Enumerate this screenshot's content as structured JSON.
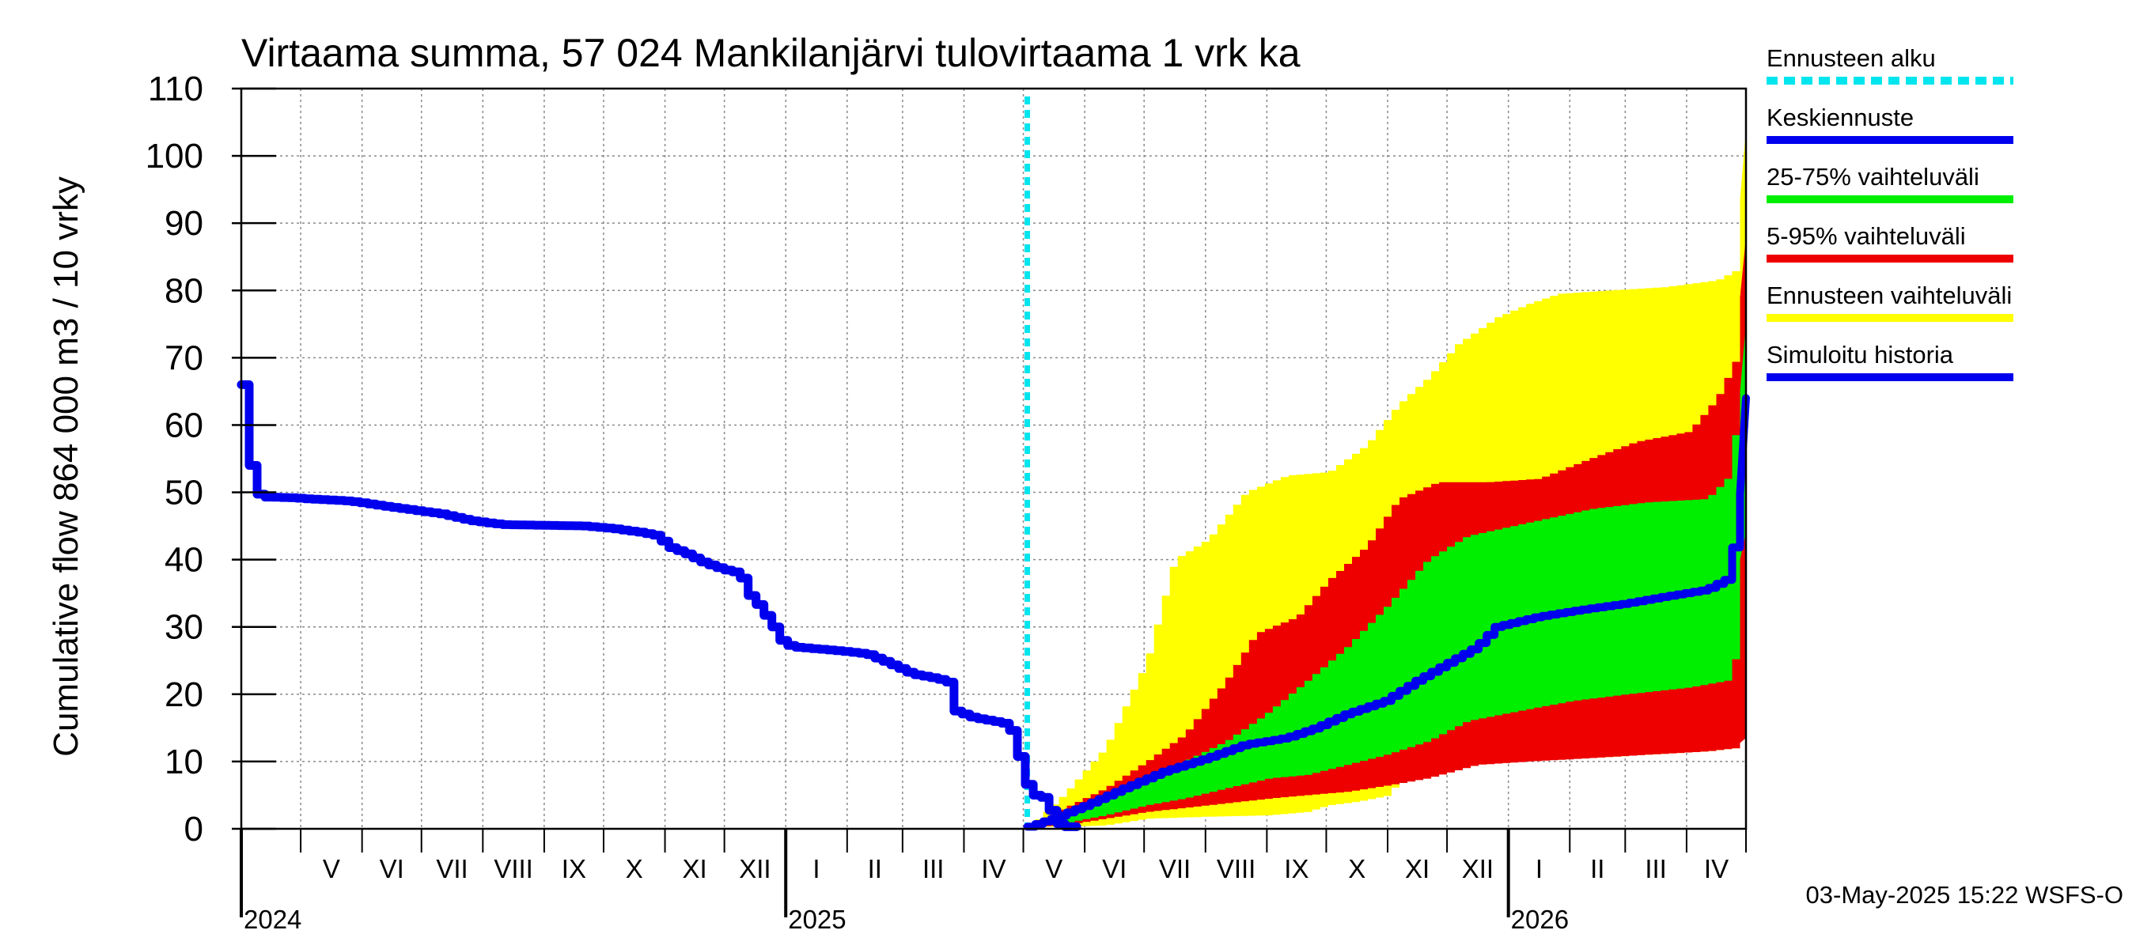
{
  "chart_data": {
    "type": "area",
    "title": "Virtaama summa, 57 024 Mankilanjärvi tulovirtaama 1 vrk ka",
    "ylabel": "Cumulative flow    864 000 m3 / 10 vrky",
    "ylim": [
      0,
      110
    ],
    "yticks": [
      0,
      10,
      20,
      30,
      40,
      50,
      60,
      70,
      80,
      90,
      100,
      110
    ],
    "xlim": [
      "2024-04-01",
      "2026-05-01"
    ],
    "grid": true,
    "month_labels": [
      {
        "label": "V",
        "month": "2024-05"
      },
      {
        "label": "VI",
        "month": "2024-06"
      },
      {
        "label": "VII",
        "month": "2024-07"
      },
      {
        "label": "VIII",
        "month": "2024-08"
      },
      {
        "label": "IX",
        "month": "2024-09"
      },
      {
        "label": "X",
        "month": "2024-10"
      },
      {
        "label": "XI",
        "month": "2024-11"
      },
      {
        "label": "XII",
        "month": "2024-12"
      },
      {
        "label": "I",
        "month": "2025-01"
      },
      {
        "label": "II",
        "month": "2025-02"
      },
      {
        "label": "III",
        "month": "2025-03"
      },
      {
        "label": "IV",
        "month": "2025-04"
      },
      {
        "label": "V",
        "month": "2025-05"
      },
      {
        "label": "VI",
        "month": "2025-06"
      },
      {
        "label": "VII",
        "month": "2025-07"
      },
      {
        "label": "VIII",
        "month": "2025-08"
      },
      {
        "label": "IX",
        "month": "2025-09"
      },
      {
        "label": "X",
        "month": "2025-10"
      },
      {
        "label": "XI",
        "month": "2025-11"
      },
      {
        "label": "XII",
        "month": "2025-12"
      },
      {
        "label": "I",
        "month": "2026-01"
      },
      {
        "label": "II",
        "month": "2026-02"
      },
      {
        "label": "III",
        "month": "2026-03"
      },
      {
        "label": "IV",
        "month": "2026-04"
      }
    ],
    "year_labels": [
      {
        "label": "2024",
        "date": "2024-04-01"
      },
      {
        "label": "2025",
        "date": "2025-01-01"
      },
      {
        "label": "2026",
        "date": "2026-01-01"
      }
    ],
    "forecast_start": "2025-05-03",
    "legend": [
      {
        "label": "Ennusteen alku",
        "color": "#00e5ee",
        "style": "dashed"
      },
      {
        "label": "Keskiennuste",
        "color": "#0000ee",
        "style": "solid"
      },
      {
        "label": "25-75% vaihteluväli",
        "color": "#00ee00",
        "style": "solid"
      },
      {
        "label": "5-95% vaihteluväli",
        "color": "#ee0000",
        "style": "solid"
      },
      {
        "label": "Ennusteen vaihteluväli",
        "color": "#ffff00",
        "style": "solid"
      },
      {
        "label": "Simuloitu historia",
        "color": "#0000ee",
        "style": "solid"
      }
    ],
    "colors": {
      "history": "#0000ee",
      "median": "#0000ee",
      "band_25_75": "#00ee00",
      "band_5_95": "#ee0000",
      "band_full": "#ffff00",
      "forecast_start": "#00e5ee"
    },
    "history": [
      [
        "2024-04-01",
        66
      ],
      [
        "2024-04-04",
        56
      ],
      [
        "2024-04-07",
        50
      ],
      [
        "2024-04-12",
        49.3
      ],
      [
        "2024-04-25",
        49.2
      ],
      [
        "2024-05-05",
        49
      ],
      [
        "2024-05-25",
        48.7
      ],
      [
        "2024-06-10",
        48
      ],
      [
        "2024-06-25",
        47.4
      ],
      [
        "2024-07-10",
        46.8
      ],
      [
        "2024-07-25",
        45.8
      ],
      [
        "2024-08-10",
        45.2
      ],
      [
        "2024-08-31",
        45.1
      ],
      [
        "2024-09-20",
        45
      ],
      [
        "2024-10-05",
        44.6
      ],
      [
        "2024-10-20",
        44
      ],
      [
        "2024-10-28",
        43.5
      ],
      [
        "2024-11-01",
        42
      ],
      [
        "2024-11-10",
        41
      ],
      [
        "2024-11-20",
        39.5
      ],
      [
        "2024-11-30",
        38.5
      ],
      [
        "2024-12-08",
        38
      ],
      [
        "2024-12-12",
        35
      ],
      [
        "2024-12-18",
        33
      ],
      [
        "2024-12-25",
        30
      ],
      [
        "2024-12-30",
        27.5
      ],
      [
        "2025-01-05",
        27
      ],
      [
        "2025-01-25",
        26.5
      ],
      [
        "2025-02-10",
        26
      ],
      [
        "2025-02-22",
        24.5
      ],
      [
        "2025-03-05",
        23
      ],
      [
        "2025-03-18",
        22.3
      ],
      [
        "2025-03-23",
        21.8
      ],
      [
        "2025-03-27",
        17.5
      ],
      [
        "2025-04-05",
        16.5
      ],
      [
        "2025-04-15",
        16
      ],
      [
        "2025-04-23",
        15.5
      ],
      [
        "2025-04-27",
        12
      ],
      [
        "2025-05-01",
        7
      ],
      [
        "2025-05-06",
        5
      ],
      [
        "2025-05-12",
        4.5
      ],
      [
        "2025-05-16",
        1
      ],
      [
        "2025-05-22",
        0.3
      ],
      [
        "2025-05-28",
        0.3
      ]
    ],
    "median": [
      [
        "2025-05-03",
        0.3
      ],
      [
        "2025-05-15",
        1.5
      ],
      [
        "2025-06-01",
        3.5
      ],
      [
        "2025-06-20",
        6
      ],
      [
        "2025-07-10",
        8.5
      ],
      [
        "2025-08-01",
        10.5
      ],
      [
        "2025-08-20",
        12.5
      ],
      [
        "2025-09-10",
        13.5
      ],
      [
        "2025-09-25",
        15
      ],
      [
        "2025-10-10",
        17
      ],
      [
        "2025-10-30",
        19
      ],
      [
        "2025-11-15",
        22
      ],
      [
        "2025-11-30",
        24.5
      ],
      [
        "2025-12-15",
        27
      ],
      [
        "2025-12-25",
        30
      ],
      [
        "2026-01-15",
        31.5
      ],
      [
        "2026-02-05",
        32.5
      ],
      [
        "2026-03-01",
        33.5
      ],
      [
        "2026-03-20",
        34.5
      ],
      [
        "2026-04-10",
        35.5
      ],
      [
        "2026-04-20",
        37
      ],
      [
        "2026-04-25",
        43
      ],
      [
        "2026-04-29",
        52
      ],
      [
        "2026-05-01",
        64
      ]
    ],
    "band_full_upper": [
      [
        "2025-05-03",
        0.3
      ],
      [
        "2025-05-20",
        5
      ],
      [
        "2025-06-10",
        12
      ],
      [
        "2025-07-01",
        25
      ],
      [
        "2025-07-15",
        40
      ],
      [
        "2025-08-01",
        43
      ],
      [
        "2025-08-20",
        50
      ],
      [
        "2025-09-10",
        52.5
      ],
      [
        "2025-10-01",
        53
      ],
      [
        "2025-10-20",
        57
      ],
      [
        "2025-11-05",
        63
      ],
      [
        "2025-11-20",
        67
      ],
      [
        "2025-12-05",
        72
      ],
      [
        "2025-12-25",
        76
      ],
      [
        "2026-01-10",
        78
      ],
      [
        "2026-01-25",
        79.5
      ],
      [
        "2026-02-20",
        80
      ],
      [
        "2026-03-20",
        80.5
      ],
      [
        "2026-04-15",
        81.5
      ],
      [
        "2026-04-25",
        83
      ],
      [
        "2026-05-01",
        104
      ]
    ],
    "band_5_95_upper": [
      [
        "2025-05-03",
        0.3
      ],
      [
        "2025-05-20",
        3
      ],
      [
        "2025-06-10",
        6
      ],
      [
        "2025-07-01",
        10
      ],
      [
        "2025-07-20",
        14
      ],
      [
        "2025-08-10",
        22
      ],
      [
        "2025-08-25",
        29
      ],
      [
        "2025-09-15",
        31.5
      ],
      [
        "2025-10-01",
        37
      ],
      [
        "2025-10-20",
        42
      ],
      [
        "2025-11-05",
        49
      ],
      [
        "2025-11-25",
        51.5
      ],
      [
        "2025-12-20",
        51.5
      ],
      [
        "2026-01-15",
        52
      ],
      [
        "2026-02-10",
        55
      ],
      [
        "2026-03-05",
        57.5
      ],
      [
        "2026-04-01",
        59
      ],
      [
        "2026-04-15",
        64
      ],
      [
        "2026-04-25",
        70
      ],
      [
        "2026-05-01",
        88
      ]
    ],
    "band_25_75_upper": [
      [
        "2025-05-03",
        0.3
      ],
      [
        "2025-05-20",
        2
      ],
      [
        "2025-06-10",
        4.5
      ],
      [
        "2025-07-01",
        7.5
      ],
      [
        "2025-07-20",
        10
      ],
      [
        "2025-08-10",
        13
      ],
      [
        "2025-08-30",
        17
      ],
      [
        "2025-09-20",
        22
      ],
      [
        "2025-10-10",
        27
      ],
      [
        "2025-10-30",
        33
      ],
      [
        "2025-11-20",
        40
      ],
      [
        "2025-12-10",
        43.5
      ],
      [
        "2026-01-10",
        45.5
      ],
      [
        "2026-02-10",
        47.5
      ],
      [
        "2026-03-10",
        48.5
      ],
      [
        "2026-04-10",
        49
      ],
      [
        "2026-04-20",
        52
      ],
      [
        "2026-04-28",
        65
      ],
      [
        "2026-05-01",
        75
      ]
    ],
    "band_25_75_lower": [
      [
        "2025-05-03",
        0.3
      ],
      [
        "2025-05-20",
        0.8
      ],
      [
        "2025-06-10",
        2
      ],
      [
        "2025-07-01",
        3.5
      ],
      [
        "2025-07-20",
        4.5
      ],
      [
        "2025-08-10",
        6
      ],
      [
        "2025-09-01",
        7.5
      ],
      [
        "2025-09-20",
        8
      ],
      [
        "2025-10-10",
        9.5
      ],
      [
        "2025-10-30",
        11
      ],
      [
        "2025-11-20",
        13
      ],
      [
        "2025-12-10",
        16
      ],
      [
        "2026-01-05",
        17.5
      ],
      [
        "2026-02-01",
        19
      ],
      [
        "2026-03-01",
        20
      ],
      [
        "2026-04-01",
        21
      ],
      [
        "2026-04-20",
        22
      ],
      [
        "2026-04-25",
        26
      ],
      [
        "2026-04-28",
        40
      ],
      [
        "2026-05-01",
        44
      ]
    ],
    "band_5_95_lower": [
      [
        "2025-05-03",
        0.3
      ],
      [
        "2025-05-20",
        0.5
      ],
      [
        "2025-06-10",
        1.5
      ],
      [
        "2025-07-01",
        2.5
      ],
      [
        "2025-08-01",
        3.5
      ],
      [
        "2025-09-01",
        4.5
      ],
      [
        "2025-09-20",
        5
      ],
      [
        "2025-10-10",
        5.5
      ],
      [
        "2025-11-01",
        6.5
      ],
      [
        "2025-11-20",
        7.5
      ],
      [
        "2025-12-15",
        9.5
      ],
      [
        "2026-01-10",
        10
      ],
      [
        "2026-02-10",
        10.5
      ],
      [
        "2026-03-10",
        11
      ],
      [
        "2026-04-10",
        11.5
      ],
      [
        "2026-04-25",
        12
      ],
      [
        "2026-05-01",
        13.5
      ]
    ],
    "band_full_lower": [
      [
        "2025-05-03",
        0.3
      ],
      [
        "2025-05-20",
        0.3
      ],
      [
        "2025-06-10",
        0.5
      ],
      [
        "2025-07-01",
        1.5
      ],
      [
        "2025-08-01",
        1.8
      ],
      [
        "2025-09-01",
        2
      ],
      [
        "2025-09-20",
        2.5
      ],
      [
        "2025-10-01",
        3.5
      ],
      [
        "2025-10-15",
        4
      ],
      [
        "2025-11-01",
        5
      ],
      [
        "2025-11-10",
        10
      ],
      [
        "2025-12-01",
        10
      ],
      [
        "2026-01-10",
        10.3
      ],
      [
        "2026-02-10",
        10.5
      ],
      [
        "2026-03-10",
        11
      ],
      [
        "2026-04-10",
        11.5
      ],
      [
        "2026-04-25",
        12
      ],
      [
        "2026-05-01",
        14
      ]
    ]
  },
  "footer": "03-May-2025 15:22 WSFS-O"
}
